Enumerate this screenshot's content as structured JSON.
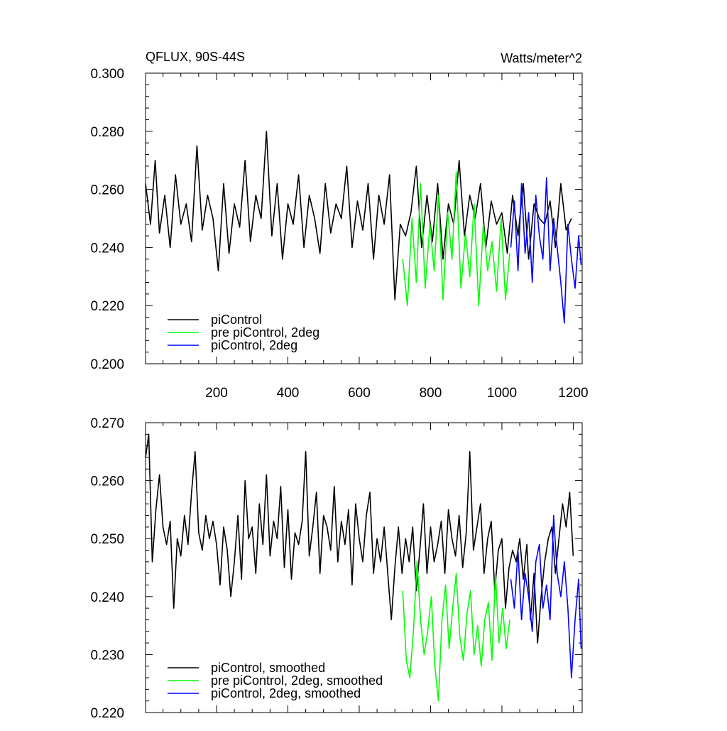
{
  "chart_data": [
    {
      "type": "line",
      "title": "QFLUX, 90S-44S",
      "units": "Watts/meter^2",
      "xlim": [
        1,
        1225
      ],
      "ylim": [
        0.2,
        0.3
      ],
      "x_ticks": [
        200,
        400,
        600,
        800,
        1000,
        1200
      ],
      "y_ticks": [
        "0.200",
        "0.220",
        "0.240",
        "0.260",
        "0.280",
        "0.300"
      ],
      "legend_position": "bottom-left",
      "series": [
        {
          "name": "piControl",
          "color": "#000000",
          "x": [
            1,
            15,
            28,
            40,
            55,
            70,
            85,
            100,
            115,
            130,
            145,
            160,
            175,
            190,
            205,
            220,
            235,
            250,
            265,
            280,
            295,
            310,
            325,
            340,
            355,
            370,
            385,
            400,
            415,
            430,
            445,
            460,
            475,
            490,
            505,
            520,
            535,
            550,
            565,
            580,
            595,
            610,
            625,
            640,
            655,
            670,
            685,
            700,
            715,
            730,
            745,
            760,
            775,
            790,
            805,
            820,
            835,
            850,
            865,
            880,
            895,
            910,
            925,
            940,
            955,
            970,
            985,
            1000,
            1015,
            1030,
            1045,
            1060,
            1075,
            1090,
            1105,
            1120,
            1135,
            1150,
            1165,
            1180,
            1195
          ],
          "y": [
            0.262,
            0.248,
            0.27,
            0.245,
            0.258,
            0.24,
            0.265,
            0.248,
            0.255,
            0.242,
            0.275,
            0.246,
            0.258,
            0.25,
            0.232,
            0.262,
            0.238,
            0.255,
            0.247,
            0.27,
            0.242,
            0.258,
            0.25,
            0.28,
            0.244,
            0.262,
            0.236,
            0.255,
            0.248,
            0.265,
            0.24,
            0.258,
            0.25,
            0.238,
            0.262,
            0.245,
            0.255,
            0.25,
            0.268,
            0.24,
            0.256,
            0.246,
            0.262,
            0.236,
            0.258,
            0.248,
            0.265,
            0.222,
            0.248,
            0.244,
            0.252,
            0.268,
            0.24,
            0.258,
            0.242,
            0.262,
            0.236,
            0.255,
            0.248,
            0.27,
            0.244,
            0.258,
            0.25,
            0.262,
            0.24,
            0.256,
            0.248,
            0.252,
            0.238,
            0.258,
            0.244,
            0.262,
            0.236,
            0.255,
            0.25,
            0.248,
            0.256,
            0.24,
            0.262,
            0.246,
            0.25
          ]
        },
        {
          "name": "pre piControl, 2deg",
          "color": "#00ff00",
          "x": [
            722,
            735,
            748,
            760,
            772,
            785,
            798,
            810,
            822,
            835,
            848,
            860,
            872,
            885,
            898,
            910,
            922,
            935,
            948,
            960,
            972,
            985,
            998,
            1010,
            1022
          ],
          "y": [
            0.236,
            0.22,
            0.25,
            0.228,
            0.262,
            0.226,
            0.248,
            0.232,
            0.258,
            0.222,
            0.252,
            0.236,
            0.266,
            0.226,
            0.245,
            0.23,
            0.255,
            0.22,
            0.248,
            0.232,
            0.242,
            0.225,
            0.25,
            0.222,
            0.238
          ]
        },
        {
          "name": "piControl, 2deg",
          "color": "#0000ff",
          "x": [
            1025,
            1035,
            1045,
            1055,
            1065,
            1075,
            1085,
            1095,
            1105,
            1115,
            1125,
            1135,
            1145,
            1155,
            1165,
            1175,
            1185,
            1195,
            1205,
            1215,
            1222
          ],
          "y": [
            0.24,
            0.256,
            0.232,
            0.262,
            0.238,
            0.252,
            0.228,
            0.258,
            0.244,
            0.236,
            0.264,
            0.232,
            0.25,
            0.24,
            0.228,
            0.214,
            0.248,
            0.236,
            0.226,
            0.244,
            0.234
          ]
        }
      ]
    },
    {
      "type": "line",
      "xlim": [
        1,
        1225
      ],
      "ylim": [
        0.22,
        0.27
      ],
      "y_ticks": [
        "0.220",
        "0.230",
        "0.240",
        "0.250",
        "0.260",
        "0.270"
      ],
      "legend_position": "bottom-left",
      "series": [
        {
          "name": "piControl, smoothed",
          "color": "#000000",
          "x": [
            1,
            10,
            20,
            30,
            40,
            50,
            60,
            70,
            80,
            90,
            100,
            110,
            120,
            130,
            140,
            150,
            160,
            170,
            180,
            190,
            200,
            210,
            220,
            230,
            240,
            250,
            260,
            270,
            280,
            290,
            300,
            310,
            320,
            330,
            340,
            350,
            360,
            370,
            380,
            390,
            400,
            410,
            420,
            430,
            440,
            450,
            460,
            470,
            480,
            490,
            500,
            510,
            520,
            530,
            540,
            550,
            560,
            570,
            580,
            590,
            600,
            610,
            620,
            630,
            640,
            650,
            660,
            670,
            680,
            690,
            700,
            710,
            720,
            730,
            740,
            750,
            760,
            770,
            780,
            790,
            800,
            810,
            820,
            830,
            840,
            850,
            860,
            870,
            880,
            890,
            900,
            910,
            920,
            930,
            940,
            950,
            960,
            970,
            980,
            990,
            1000,
            1010,
            1020,
            1030,
            1040,
            1050,
            1060,
            1070,
            1080,
            1090,
            1100,
            1110,
            1120,
            1130,
            1140,
            1150,
            1160,
            1170,
            1180,
            1190,
            1200
          ],
          "y": [
            0.264,
            0.268,
            0.246,
            0.255,
            0.261,
            0.252,
            0.249,
            0.253,
            0.238,
            0.25,
            0.247,
            0.254,
            0.249,
            0.258,
            0.265,
            0.251,
            0.248,
            0.254,
            0.25,
            0.253,
            0.249,
            0.242,
            0.252,
            0.248,
            0.24,
            0.246,
            0.254,
            0.243,
            0.26,
            0.25,
            0.252,
            0.244,
            0.256,
            0.249,
            0.261,
            0.247,
            0.253,
            0.25,
            0.259,
            0.245,
            0.255,
            0.243,
            0.251,
            0.249,
            0.253,
            0.265,
            0.247,
            0.252,
            0.258,
            0.244,
            0.254,
            0.252,
            0.248,
            0.259,
            0.246,
            0.253,
            0.249,
            0.255,
            0.242,
            0.256,
            0.25,
            0.246,
            0.254,
            0.258,
            0.244,
            0.25,
            0.246,
            0.252,
            0.244,
            0.236,
            0.245,
            0.252,
            0.244,
            0.25,
            0.246,
            0.252,
            0.241,
            0.248,
            0.256,
            0.244,
            0.252,
            0.246,
            0.249,
            0.253,
            0.244,
            0.255,
            0.25,
            0.247,
            0.254,
            0.245,
            0.251,
            0.265,
            0.248,
            0.252,
            0.256,
            0.244,
            0.25,
            0.253,
            0.241,
            0.248,
            0.25,
            0.238,
            0.245,
            0.248,
            0.246,
            0.25,
            0.243,
            0.249,
            0.236,
            0.244,
            0.232,
            0.24,
            0.246,
            0.25,
            0.252,
            0.244,
            0.25,
            0.256,
            0.252,
            0.258,
            0.247
          ]
        },
        {
          "name": "pre piControl, 2deg, smoothed",
          "color": "#00ff00",
          "x": [
            722,
            732,
            742,
            752,
            762,
            772,
            782,
            792,
            802,
            812,
            822,
            832,
            842,
            852,
            862,
            872,
            882,
            892,
            902,
            912,
            922,
            932,
            942,
            952,
            962,
            972,
            982,
            992,
            1002,
            1012,
            1022
          ],
          "y": [
            0.241,
            0.229,
            0.226,
            0.234,
            0.246,
            0.236,
            0.23,
            0.234,
            0.24,
            0.228,
            0.222,
            0.236,
            0.242,
            0.231,
            0.238,
            0.244,
            0.233,
            0.229,
            0.237,
            0.241,
            0.23,
            0.235,
            0.228,
            0.236,
            0.239,
            0.229,
            0.244,
            0.232,
            0.238,
            0.231,
            0.236
          ]
        },
        {
          "name": "piControl, 2deg, smoothed",
          "color": "#0000ff",
          "x": [
            1025,
            1035,
            1045,
            1055,
            1065,
            1075,
            1085,
            1095,
            1105,
            1115,
            1125,
            1135,
            1145,
            1155,
            1165,
            1175,
            1185,
            1195,
            1205,
            1215,
            1222
          ],
          "y": [
            0.243,
            0.238,
            0.248,
            0.236,
            0.244,
            0.24,
            0.234,
            0.246,
            0.249,
            0.238,
            0.242,
            0.236,
            0.254,
            0.244,
            0.24,
            0.246,
            0.238,
            0.226,
            0.236,
            0.243,
            0.231
          ]
        }
      ]
    }
  ]
}
